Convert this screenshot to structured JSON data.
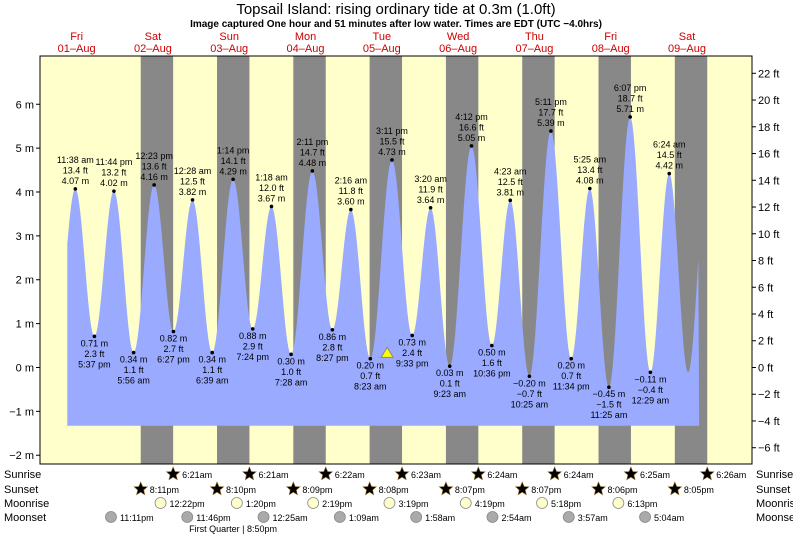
{
  "header": {
    "title": "Topsail Island: rising  ordinary tide at 0.3m (1.0ft)",
    "subtitle": "Image captured One hour and 51 minutes after low water. Times are EDT (UTC −4.0hrs)"
  },
  "days": [
    {
      "dow": "Fri",
      "date": "01–Aug"
    },
    {
      "dow": "Sat",
      "date": "02–Aug"
    },
    {
      "dow": "Sun",
      "date": "03–Aug"
    },
    {
      "dow": "Mon",
      "date": "04–Aug"
    },
    {
      "dow": "Tue",
      "date": "05–Aug"
    },
    {
      "dow": "Wed",
      "date": "06–Aug"
    },
    {
      "dow": "Thu",
      "date": "07–Aug"
    },
    {
      "dow": "Fri",
      "date": "08–Aug"
    },
    {
      "dow": "Sat",
      "date": "09–Aug"
    }
  ],
  "colors": {
    "day_bg": "#ffffcc",
    "night_bg": "#888888",
    "water": "#99aaff",
    "border": "#000000",
    "day_label": "#cc0000",
    "sun": "#ccaa33",
    "sunset": "#cc6633",
    "moonrise": "#ffffcc",
    "moonset": "#aaaaaa",
    "marker": "#ffff00"
  },
  "chart_data": {
    "type": "area",
    "y_left": {
      "unit": "m",
      "ylim": [
        -2.2,
        7.1
      ],
      "ticks": [
        6,
        5,
        4,
        3,
        2,
        1,
        0,
        -1,
        -2
      ],
      "labels": [
        "6 m",
        "5 m",
        "4 m",
        "3 m",
        "2 m",
        "1 m",
        "0 m",
        "−1 m",
        "−2 m"
      ]
    },
    "y_right": {
      "unit": "ft",
      "ticks": [
        22,
        20,
        18,
        16,
        14,
        12,
        10,
        8,
        6,
        4,
        2,
        0,
        -2,
        -4,
        -6
      ],
      "labels": [
        "22 ft",
        "20 ft",
        "18 ft",
        "16 ft",
        "14 ft",
        "12 ft",
        "10 ft",
        "8 ft",
        "6 ft",
        "4 ft",
        "2 ft",
        "0 ft",
        "−2 ft",
        "−4 ft",
        "−6 ft"
      ]
    },
    "marker": {
      "level_m": 0.3
    },
    "tide_events": [
      {
        "d": 0.983,
        "m": 4.07,
        "lines": [
          "11:38 am",
          "13.4 ft",
          "4.07 m"
        ]
      },
      {
        "d": 1.233,
        "m": 0.71,
        "lines": [
          "0.71 m",
          "2.3 ft",
          "5:37 pm"
        ]
      },
      {
        "d": 1.489,
        "m": 4.02,
        "lines": [
          "11:44 pm",
          "13.2 ft",
          "4.02 m"
        ]
      },
      {
        "d": 1.747,
        "m": 0.34,
        "lines": [
          "0.34 m",
          "1.1 ft",
          "5:56 am"
        ]
      },
      {
        "d": 2.016,
        "m": 4.16,
        "lines": [
          "12:23 pm",
          "13.6 ft",
          "4.16 m"
        ]
      },
      {
        "d": 2.269,
        "m": 0.82,
        "lines": [
          "0.82 m",
          "2.7 ft",
          "6:27 pm"
        ]
      },
      {
        "d": 2.519,
        "m": 3.82,
        "lines": [
          "12:28 am",
          "12.5 ft",
          "3.82 m"
        ]
      },
      {
        "d": 2.777,
        "m": 0.34,
        "lines": [
          "0.34 m",
          "1.1 ft",
          "6:39 am"
        ]
      },
      {
        "d": 3.051,
        "m": 4.29,
        "lines": [
          "1:14 pm",
          "14.1 ft",
          "4.29 m"
        ]
      },
      {
        "d": 3.308,
        "m": 0.88,
        "lines": [
          "0.88 m",
          "2.9 ft",
          "7:24 pm"
        ]
      },
      {
        "d": 3.554,
        "m": 3.67,
        "lines": [
          "1:18 am",
          "12.0 ft",
          "3.67 m"
        ]
      },
      {
        "d": 3.811,
        "m": 0.3,
        "lines": [
          "0.30 m",
          "1.0 ft",
          "7:28 am"
        ]
      },
      {
        "d": 4.09,
        "m": 4.48,
        "lines": [
          "2:11 pm",
          "14.7 ft",
          "4.48 m"
        ]
      },
      {
        "d": 4.352,
        "m": 0.86,
        "lines": [
          "0.86 m",
          "2.8 ft",
          "8:27 pm"
        ]
      },
      {
        "d": 4.594,
        "m": 3.6,
        "lines": [
          "2:16 am",
          "11.8 ft",
          "3.60 m"
        ]
      },
      {
        "d": 4.849,
        "m": 0.2,
        "lines": [
          "0.20 m",
          "0.7 ft",
          "8:23 am"
        ]
      },
      {
        "d": 5.133,
        "m": 4.73,
        "lines": [
          "3:11 pm",
          "15.5 ft",
          "4.73 m"
        ]
      },
      {
        "d": 5.398,
        "m": 0.73,
        "lines": [
          "0.73 m",
          "2.4 ft",
          "9:33 pm"
        ]
      },
      {
        "d": 5.639,
        "m": 3.64,
        "lines": [
          "3:20 am",
          "11.9 ft",
          "3.64 m"
        ]
      },
      {
        "d": 5.89,
        "m": 0.03,
        "lines": [
          "0.03 m",
          "0.1 ft",
          "9:23 am"
        ]
      },
      {
        "d": 6.175,
        "m": 5.05,
        "lines": [
          "4:12 pm",
          "16.6 ft",
          "5.05 m"
        ]
      },
      {
        "d": 6.442,
        "m": 0.5,
        "lines": [
          "0.50 m",
          "1.6 ft",
          "10:36 pm"
        ]
      },
      {
        "d": 6.683,
        "m": 3.81,
        "lines": [
          "4:23 am",
          "12.5 ft",
          "3.81 m"
        ]
      },
      {
        "d": 6.934,
        "m": -0.2,
        "lines": [
          "−0.20 m",
          "−0.7 ft",
          "10:25 am"
        ]
      },
      {
        "d": 7.216,
        "m": 5.39,
        "lines": [
          "5:11 pm",
          "17.7 ft",
          "5.39 m"
        ]
      },
      {
        "d": 7.482,
        "m": 0.2,
        "lines": [
          "0.20 m",
          "0.7 ft",
          "11:34 pm"
        ]
      },
      {
        "d": 7.726,
        "m": 4.08,
        "lines": [
          "5:25 am",
          "13.4 ft",
          "4.08 m"
        ]
      },
      {
        "d": 7.976,
        "m": -0.45,
        "lines": [
          "−0.45 m",
          "−1.5 ft",
          "11:25 am"
        ]
      },
      {
        "d": 8.255,
        "m": 5.71,
        "lines": [
          "6:07 pm",
          "18.7 ft",
          "5.71 m"
        ]
      },
      {
        "d": 8.52,
        "m": -0.11,
        "lines": [
          "−0.11 m",
          "−0.4 ft",
          "12:29 am"
        ]
      },
      {
        "d": 8.767,
        "m": 4.42,
        "lines": [
          "6:24 am",
          "14.5 ft",
          "4.42 m"
        ]
      }
    ]
  },
  "rows": {
    "sunrise": {
      "label": "Sunrise",
      "events": [
        {
          "d": 2.265,
          "t": "6:21am"
        },
        {
          "d": 3.265,
          "t": "6:21am"
        },
        {
          "d": 4.265,
          "t": "6:22am"
        },
        {
          "d": 5.265,
          "t": "6:23am"
        },
        {
          "d": 6.265,
          "t": "6:24am"
        },
        {
          "d": 7.265,
          "t": "6:24am"
        },
        {
          "d": 8.265,
          "t": "6:25am"
        },
        {
          "d": 9.265,
          "t": "6:26am"
        }
      ]
    },
    "sunset": {
      "label": "Sunset",
      "events": [
        {
          "d": 1.84,
          "t": "8:11pm"
        },
        {
          "d": 2.84,
          "t": "8:10pm"
        },
        {
          "d": 3.84,
          "t": "8:09pm"
        },
        {
          "d": 4.84,
          "t": "8:08pm"
        },
        {
          "d": 5.84,
          "t": "8:07pm"
        },
        {
          "d": 6.84,
          "t": "8:07pm"
        },
        {
          "d": 7.84,
          "t": "8:06pm"
        },
        {
          "d": 8.84,
          "t": "8:05pm"
        }
      ]
    },
    "moonrise": {
      "label": "Moonrise",
      "events": [
        {
          "d": 2.1,
          "t": "12:22pm"
        },
        {
          "d": 3.1,
          "t": "1:20pm"
        },
        {
          "d": 4.1,
          "t": "2:19pm"
        },
        {
          "d": 5.1,
          "t": "3:19pm"
        },
        {
          "d": 6.1,
          "t": "4:19pm"
        },
        {
          "d": 7.1,
          "t": "5:18pm"
        },
        {
          "d": 8.1,
          "t": "6:13pm"
        }
      ]
    },
    "moonset": {
      "label": "Moonset",
      "events": [
        {
          "d": 1.45,
          "t": "11:11pm"
        },
        {
          "d": 2.45,
          "t": "11:46pm"
        },
        {
          "d": 3.45,
          "t": "12:25am"
        },
        {
          "d": 4.45,
          "t": "1:09am"
        },
        {
          "d": 5.45,
          "t": "1:58am"
        },
        {
          "d": 6.45,
          "t": "2:54am"
        },
        {
          "d": 7.45,
          "t": "3:57am"
        },
        {
          "d": 8.45,
          "t": "5:04am"
        }
      ]
    },
    "moon_phase": "First Quarter | 8:50pm"
  }
}
